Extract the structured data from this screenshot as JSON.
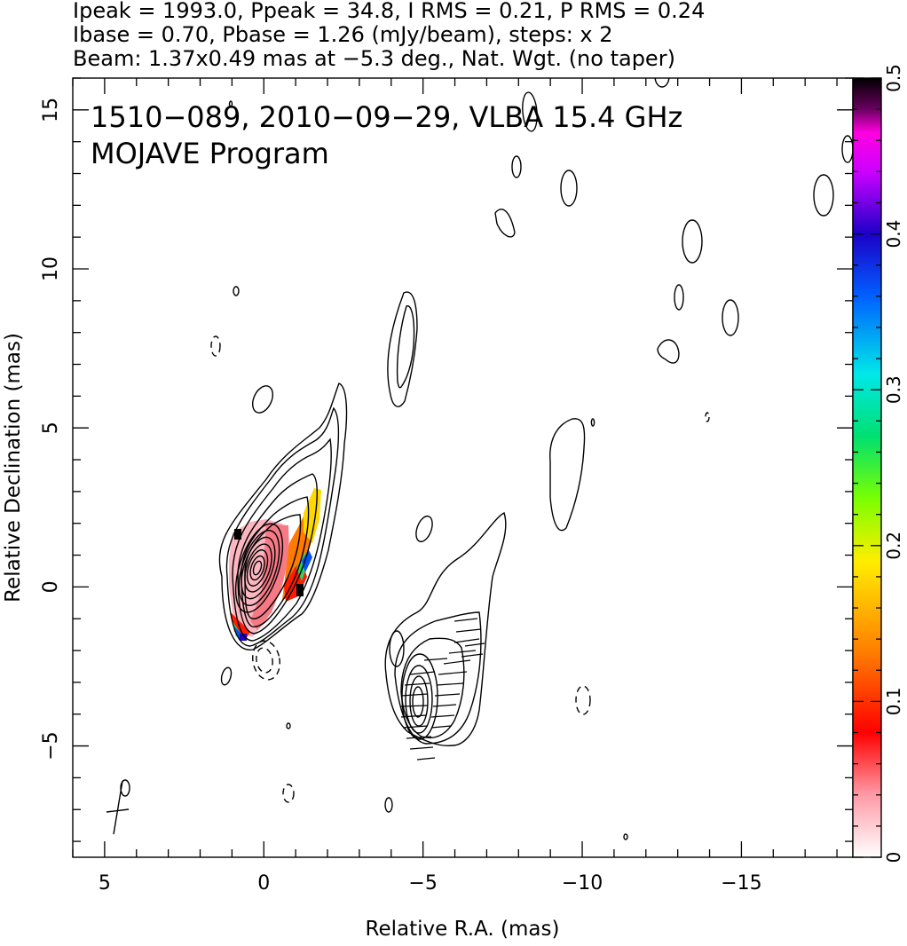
{
  "header": {
    "line1": "Ipeak = 1993.0, Ppeak = 34.8, I RMS = 0.21, P RMS = 0.24",
    "line2": "Ibase = 0.70, Pbase = 1.26 (mJy/beam), steps: x 2",
    "line3": "Beam: 1.37x0.49 mas at −5.3 deg., Nat. Wgt. (no taper)"
  },
  "inset": {
    "line1": "1510−089, 2010−09−29, VLBA 15.4 GHz",
    "line2": "MOJAVE Program"
  },
  "chart_data": {
    "type": "heatmap",
    "xlabel": "Relative R.A. (mas)",
    "ylabel": "Relative Declination (mas)",
    "xlim": [
      6,
      -18.5
    ],
    "ylim": [
      -8.5,
      16
    ],
    "x_ticks": [
      {
        "value": 5,
        "label": "5"
      },
      {
        "value": 0,
        "label": "0"
      },
      {
        "value": -5,
        "label": "−5"
      },
      {
        "value": -10,
        "label": "−10"
      },
      {
        "value": -15,
        "label": "−15"
      }
    ],
    "y_ticks": [
      {
        "value": -5,
        "label": "−5"
      },
      {
        "value": 0,
        "label": "0"
      },
      {
        "value": 5,
        "label": "5"
      },
      {
        "value": 10,
        "label": "10"
      },
      {
        "value": 15,
        "label": "15"
      }
    ],
    "colorbar": {
      "range": [
        0,
        0.5
      ],
      "ticks": [
        {
          "value": 0,
          "label": "0"
        },
        {
          "value": 0.1,
          "label": "0.1"
        },
        {
          "value": 0.2,
          "label": "0.2"
        },
        {
          "value": 0.3,
          "label": "0.3"
        },
        {
          "value": 0.4,
          "label": "0.4"
        },
        {
          "value": 0.5,
          "label": "0.5"
        }
      ]
    },
    "core": {
      "x": 0,
      "y": 0
    },
    "jet_component": {
      "x": -5,
      "y": -4
    },
    "beam": {
      "major": 1.37,
      "minor": 0.49,
      "pa": -5.3
    }
  }
}
